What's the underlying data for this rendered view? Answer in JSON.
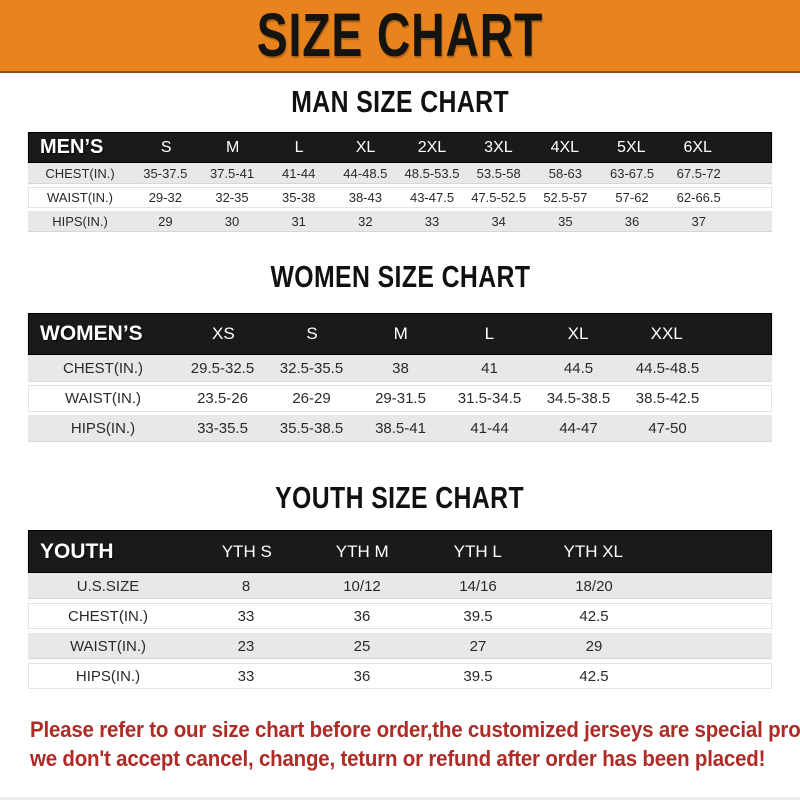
{
  "banner": {
    "title": "SIZE CHART"
  },
  "colors": {
    "banner_bg": "#E8831D",
    "header_bar_bg": "#1A1A1A",
    "row_gray": "#E8E8E9",
    "disclaimer_red": "#AE2B26"
  },
  "sections": [
    {
      "id": "men",
      "heading": "MAN SIZE CHART",
      "header_label": "MEN’S",
      "columns": [
        "S",
        "M",
        "L",
        "XL",
        "2XL",
        "3XL",
        "4XL",
        "5XL",
        "6XL"
      ],
      "rows": [
        {
          "label": "CHEST(IN.)",
          "values": [
            "35-37.5",
            "37.5-41",
            "41-44",
            "44-48.5",
            "48.5-53.5",
            "53.5-58",
            "58-63",
            "63-67.5",
            "67.5-72"
          ]
        },
        {
          "label": "WAIST(IN.)",
          "values": [
            "29-32",
            "32-35",
            "35-38",
            "38-43",
            "43-47.5",
            "47.5-52.5",
            "52.5-57",
            "57-62",
            "62-66.5"
          ]
        },
        {
          "label": "HIPS(IN.)",
          "values": [
            "29",
            "30",
            "31",
            "32",
            "33",
            "34",
            "35",
            "36",
            "37"
          ]
        }
      ]
    },
    {
      "id": "women",
      "heading": "WOMEN SIZE CHART",
      "header_label": "WOMEN’S",
      "columns": [
        "XS",
        "S",
        "M",
        "L",
        "XL",
        "XXL"
      ],
      "rows": [
        {
          "label": "CHEST(IN.)",
          "values": [
            "29.5-32.5",
            "32.5-35.5",
            "38",
            "41",
            "44.5",
            "44.5-48.5"
          ]
        },
        {
          "label": "WAIST(IN.)",
          "values": [
            "23.5-26",
            "26-29",
            "29-31.5",
            "31.5-34.5",
            "34.5-38.5",
            "38.5-42.5"
          ]
        },
        {
          "label": "HIPS(IN.)",
          "values": [
            "33-35.5",
            "35.5-38.5",
            "38.5-41",
            "41-44",
            "44-47",
            "47-50"
          ]
        }
      ]
    },
    {
      "id": "youth",
      "heading": "YOUTH SIZE CHART",
      "header_label": "YOUTH",
      "columns": [
        "YTH S",
        "YTH M",
        "YTH L",
        "YTH XL"
      ],
      "rows": [
        {
          "label": "U.S.SIZE",
          "values": [
            "8",
            "10/12",
            "14/16",
            "18/20"
          ]
        },
        {
          "label": "CHEST(IN.)",
          "values": [
            "33",
            "36",
            "39.5",
            "42.5"
          ]
        },
        {
          "label": "WAIST(IN.)",
          "values": [
            "23",
            "25",
            "27",
            "29"
          ]
        },
        {
          "label": "HIPS(IN.)",
          "values": [
            "33",
            "36",
            "39.5",
            "42.5"
          ]
        }
      ]
    }
  ],
  "disclaimer": {
    "line1": "Please refer to our size chart before order,the customized jerseys are special products,",
    "line2": "we don't accept cancel, change, teturn or refund after order has been placed!"
  }
}
